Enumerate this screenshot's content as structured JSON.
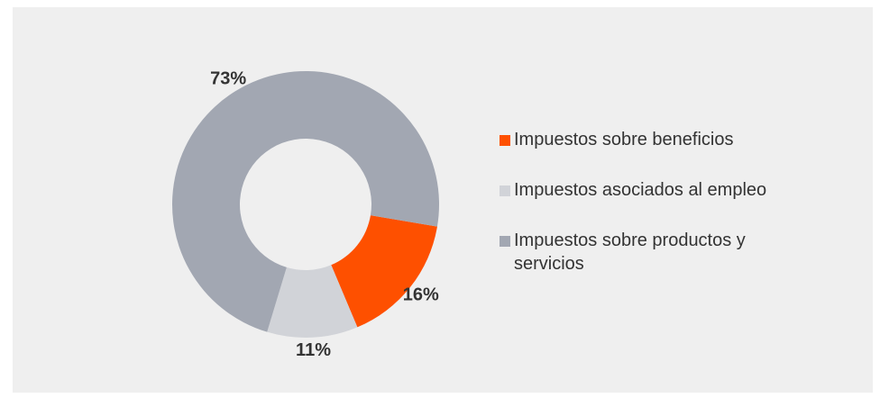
{
  "chart_data": {
    "type": "pie",
    "categories": [
      "Impuestos sobre beneficios",
      "Impuestos asociados al empleo",
      "Impuestos sobre productos y servicios"
    ],
    "values": [
      16,
      11,
      73
    ],
    "value_labels": [
      "16%",
      "11%",
      "73%"
    ],
    "colors": [
      "#fe5000",
      "#d1d3d8",
      "#a2a7b2"
    ],
    "legend": "right"
  }
}
